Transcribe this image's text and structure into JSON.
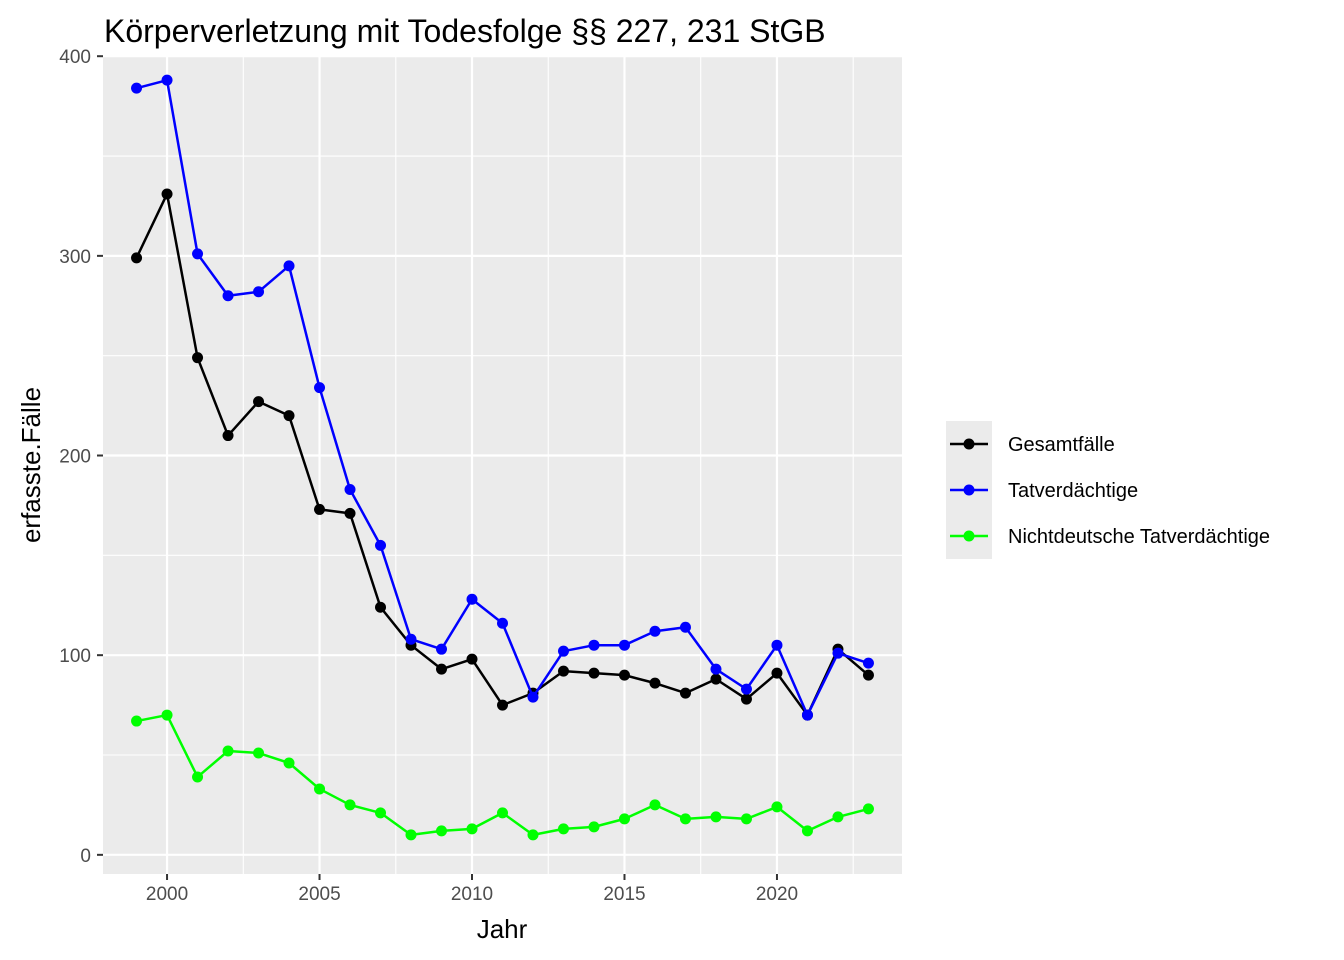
{
  "chart_data": {
    "type": "line",
    "title": "Körperverletzung mit Todesfolge §§ 227, 231 StGB",
    "xlabel": "Jahr",
    "ylabel": "erfasste.Fälle",
    "xlim": [
      1997.9,
      2024.1
    ],
    "ylim": [
      -9.6,
      399.6
    ],
    "x_ticks": [
      2000,
      2005,
      2010,
      2015,
      2020
    ],
    "y_ticks": [
      0,
      100,
      200,
      300,
      400
    ],
    "x_tick_labels": [
      "2000",
      "2005",
      "2010",
      "2015",
      "2020"
    ],
    "y_tick_labels": [
      "0",
      "100",
      "200",
      "300",
      "400"
    ],
    "grid": true,
    "legend_position": "right",
    "x": [
      1999,
      2000,
      2001,
      2002,
      2003,
      2004,
      2005,
      2006,
      2007,
      2008,
      2009,
      2010,
      2011,
      2012,
      2013,
      2014,
      2015,
      2016,
      2017,
      2018,
      2019,
      2020,
      2021,
      2022,
      2023
    ],
    "series": [
      {
        "name": "Gesamtfälle",
        "color": "#000000",
        "values": [
          299,
          331,
          249,
          210,
          227,
          220,
          173,
          171,
          124,
          105,
          93,
          98,
          75,
          81,
          92,
          91,
          90,
          86,
          81,
          88,
          78,
          91,
          70,
          103,
          90
        ]
      },
      {
        "name": "Tatverdächtige",
        "color": "#0000ff",
        "values": [
          384,
          388,
          301,
          280,
          282,
          295,
          234,
          183,
          155,
          108,
          103,
          128,
          116,
          79,
          102,
          105,
          105,
          112,
          114,
          93,
          83,
          105,
          70,
          101,
          96
        ]
      },
      {
        "name": "Nichtdeutsche Tatverdächtige",
        "color": "#00ff00",
        "values": [
          67,
          70,
          39,
          52,
          51,
          46,
          33,
          25,
          21,
          10,
          12,
          13,
          21,
          10,
          13,
          14,
          18,
          25,
          18,
          19,
          18,
          24,
          12,
          19,
          23
        ]
      }
    ]
  }
}
